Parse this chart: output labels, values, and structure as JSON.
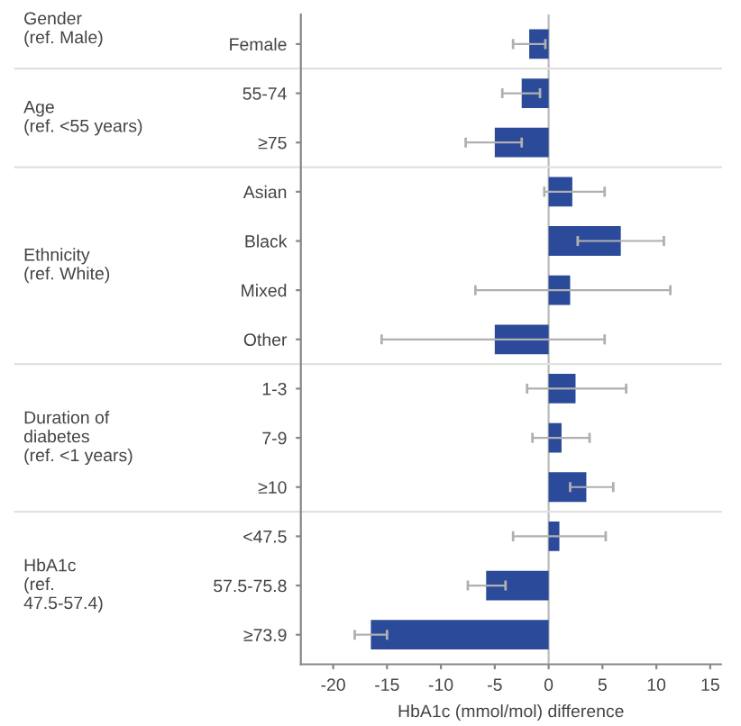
{
  "chart_data": {
    "type": "bar",
    "orientation": "horizontal",
    "categories": [
      "Female",
      "55-74",
      "≥75",
      "Asian",
      "Black",
      "Mixed",
      "Other",
      "1-3",
      "7-9",
      "≥10",
      "<47.5",
      "57.5-75.8",
      "≥73.9"
    ],
    "values": [
      -1.8,
      -2.5,
      -5,
      2.2,
      6.7,
      2,
      -5,
      2.5,
      1.2,
      3.5,
      1,
      -5.8,
      -16.5
    ],
    "errors": [
      [
        -3.3,
        -0.3
      ],
      [
        -4.3,
        -0.8
      ],
      [
        -7.7,
        -2.5
      ],
      [
        -0.4,
        5.2
      ],
      [
        2.7,
        10.7
      ],
      [
        -6.8,
        11.3
      ],
      [
        -15.5,
        5.2
      ],
      [
        -2,
        7.2
      ],
      [
        -1.5,
        3.8
      ],
      [
        2,
        6
      ],
      [
        -3.3,
        5.3
      ],
      [
        -7.5,
        -4
      ],
      [
        -18,
        -15
      ]
    ],
    "color": "#2b4a9a",
    "xlim": [
      -23,
      16
    ],
    "xticks": [
      -20,
      -15,
      -10,
      -5,
      0,
      5,
      10,
      15
    ],
    "xlabel": "HbA1c (mmol/mol) difference",
    "ref_lines": [
      {
        "axis": "x",
        "value": 0,
        "color": "#bbbbbb"
      }
    ],
    "annotations": [
      "Gender\n(ref. Male)",
      "Age\n(ref. <55 years)",
      "Ethnicity\n(ref. White)",
      "Duration of\ndiabetes\n(ref. <1 years)",
      "HbA1c\n(ref.\n47.5-57.4)"
    ],
    "grid": false,
    "legend": false
  }
}
